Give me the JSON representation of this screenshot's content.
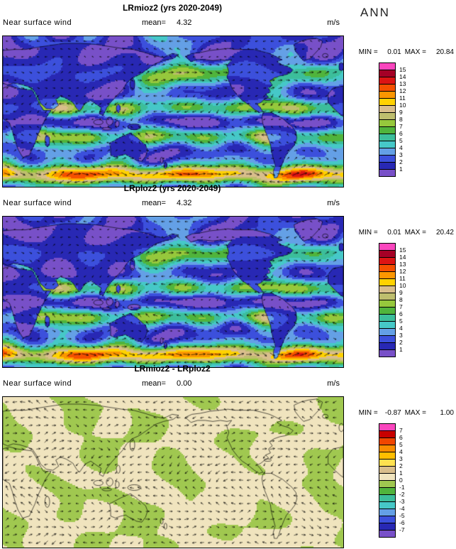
{
  "ann_label": "ANN",
  "chart_data": [
    {
      "type": "heatmap",
      "subtype": "global lat-lon map, filled contours with wind vector overlay",
      "title": "LRmioz2 (yrs 2020-2049)",
      "variable": "Near surface wind",
      "mean_label": "mean=",
      "mean": "4.32",
      "units": "m/s",
      "min_label": "MIN =",
      "min": "0.01",
      "max_label": "MAX =",
      "max": "20.84",
      "field_style": "speed",
      "colorbar": {
        "orientation": "vertical",
        "position": "right",
        "levels": [
          1,
          2,
          3,
          4,
          5,
          6,
          7,
          8,
          9,
          10,
          11,
          12,
          13,
          14,
          15
        ],
        "tick_labels": [
          "15",
          "14",
          "13",
          "12",
          "11",
          "10",
          "9",
          "8",
          "7",
          "6",
          "5",
          "4",
          "3",
          "2",
          "1"
        ],
        "colors": [
          "#FA46BE",
          "#A50026",
          "#DC1414",
          "#F55000",
          "#FC9600",
          "#FFD200",
          "#D9BE8C",
          "#BEBE6E",
          "#96C83C",
          "#50B43C",
          "#3CBE9B",
          "#46C8C8",
          "#64A0E6",
          "#3C50DC",
          "#2828B4",
          "#7850C8"
        ]
      }
    },
    {
      "type": "heatmap",
      "subtype": "global lat-lon map, filled contours with wind vector overlay",
      "title": "LRploz2 (yrs 2020-2049)",
      "variable": "Near surface wind",
      "mean_label": "mean=",
      "mean": "4.32",
      "units": "m/s",
      "min_label": "MIN =",
      "min": "0.01",
      "max_label": "MAX =",
      "max": "20.42",
      "field_style": "speed",
      "colorbar": {
        "orientation": "vertical",
        "position": "right",
        "levels": [
          1,
          2,
          3,
          4,
          5,
          6,
          7,
          8,
          9,
          10,
          11,
          12,
          13,
          14,
          15
        ],
        "tick_labels": [
          "15",
          "14",
          "13",
          "12",
          "11",
          "10",
          "9",
          "8",
          "7",
          "6",
          "5",
          "4",
          "3",
          "2",
          "1"
        ],
        "colors": [
          "#FA46BE",
          "#A50026",
          "#DC1414",
          "#F55000",
          "#FC9600",
          "#FFD200",
          "#D9BE8C",
          "#BEBE6E",
          "#96C83C",
          "#50B43C",
          "#3CBE9B",
          "#46C8C8",
          "#64A0E6",
          "#3C50DC",
          "#2828B4",
          "#7850C8"
        ]
      }
    },
    {
      "type": "heatmap",
      "subtype": "global lat-lon difference map, filled contours with wind vector overlay",
      "title": "LRmioz2 - LRploz2",
      "variable": "Near surface wind",
      "mean_label": "mean=",
      "mean": "0.00",
      "units": "m/s",
      "min_label": "MIN =",
      "min": "-0.87",
      "max_label": "MAX =",
      "max": "1.00",
      "field_style": "difference",
      "colorbar": {
        "orientation": "vertical",
        "position": "right",
        "levels": [
          -7,
          -6,
          -5,
          -4,
          -3,
          -2,
          -1,
          0,
          1,
          2,
          3,
          4,
          5,
          6,
          7
        ],
        "tick_labels": [
          "7",
          "6",
          "5",
          "4",
          "3",
          "2",
          "1",
          "0",
          "-1",
          "-2",
          "-3",
          "-4",
          "-5",
          "-6",
          "-7"
        ],
        "colors": [
          "#FA46BE",
          "#C80000",
          "#F04600",
          "#FA8C00",
          "#FFBE00",
          "#FFE150",
          "#D9BE8C",
          "#F0E4BE",
          "#A0C850",
          "#50B43C",
          "#3CBE9B",
          "#46C8C8",
          "#64A0E6",
          "#3C50DC",
          "#2828B4",
          "#7850C8"
        ]
      }
    }
  ]
}
